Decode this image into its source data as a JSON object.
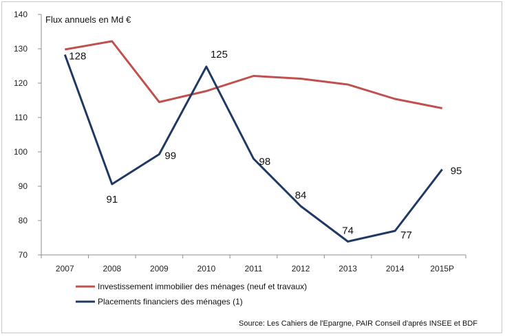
{
  "chart_data": {
    "type": "line",
    "title": "Flux annuels en Md €",
    "categories": [
      "2007",
      "2008",
      "2009",
      "2010",
      "2011",
      "2012",
      "2013",
      "2014",
      "2015P"
    ],
    "ylim": [
      70,
      140
    ],
    "yticks": [
      70,
      80,
      90,
      100,
      110,
      120,
      130,
      140
    ],
    "grid": false,
    "legend_position": "bottom",
    "series": [
      {
        "name": "Investissement immobilier des ménages (neuf et travaux)",
        "color": "#c0504d",
        "values": [
          129.8,
          132.2,
          114.5,
          117.7,
          122.1,
          121.3,
          119.6,
          115.4,
          112.7
        ],
        "show_labels": false
      },
      {
        "name": "Placements financiers des ménages (1)",
        "color": "#1f3864",
        "values": [
          128.3,
          90.6,
          99.3,
          124.8,
          98.0,
          84.2,
          73.9,
          77.0,
          94.9
        ],
        "labels": [
          "128",
          "91",
          "99",
          "125",
          "98",
          "84",
          "74",
          "77",
          "95"
        ],
        "show_labels": true
      }
    ],
    "source": "Source: Les Cahiers de l'Epargne, PAIR Conseil d'aprés INSEE et BDF"
  }
}
